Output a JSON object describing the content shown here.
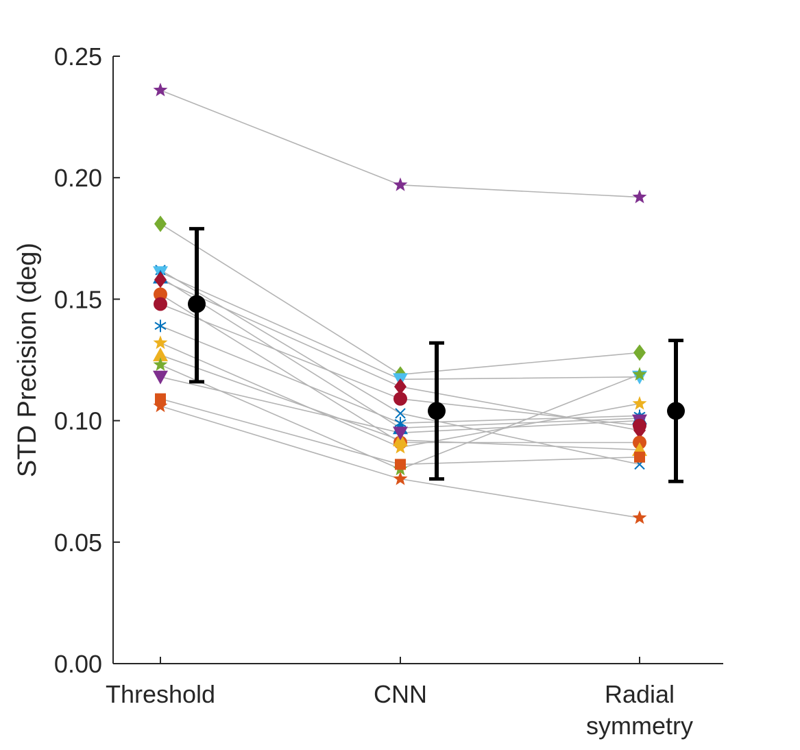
{
  "chart_data": {
    "type": "scatter",
    "title": "",
    "xlabel": "",
    "ylabel": "STD Precision (deg)",
    "ylim": [
      0,
      0.25
    ],
    "yticks": [
      "0.00",
      "0.05",
      "0.10",
      "0.15",
      "0.20",
      "0.25"
    ],
    "ytick_values": [
      0,
      0.05,
      0.1,
      0.15,
      0.2,
      0.25
    ],
    "categories": [
      {
        "lines": [
          "Threshold"
        ]
      },
      {
        "lines": [
          "CNN"
        ]
      },
      {
        "lines": [
          "Radial",
          "symmetry"
        ]
      }
    ],
    "series": [
      {
        "name": "s1",
        "marker": "star",
        "color": "#7E2F8E",
        "values": [
          0.236,
          0.197,
          0.192
        ]
      },
      {
        "name": "s2",
        "marker": "diamond",
        "color": "#77AC30",
        "values": [
          0.181,
          0.119,
          0.128
        ]
      },
      {
        "name": "s3",
        "marker": "x",
        "color": "#0072BD",
        "values": [
          0.162,
          0.103,
          0.082
        ]
      },
      {
        "name": "s4",
        "marker": "triangle-down",
        "color": "#4DBEEE",
        "values": [
          0.161,
          0.117,
          0.118
        ]
      },
      {
        "name": "s5",
        "marker": "triangle-up",
        "color": "#0072BD",
        "values": [
          0.159,
          0.097,
          0.101
        ]
      },
      {
        "name": "s6",
        "marker": "diamond",
        "color": "#A2142F",
        "values": [
          0.158,
          0.114,
          0.096
        ]
      },
      {
        "name": "s7",
        "marker": "circle",
        "color": "#D95319",
        "values": [
          0.152,
          0.091,
          0.091
        ]
      },
      {
        "name": "s8",
        "marker": "asterisk",
        "color": "#0072BD",
        "values": [
          0.139,
          0.099,
          0.102
        ]
      },
      {
        "name": "s9",
        "marker": "star",
        "color": "#EDB120",
        "values": [
          0.132,
          0.089,
          0.107
        ]
      },
      {
        "name": "s10",
        "marker": "triangle-up",
        "color": "#EDB120",
        "values": [
          0.127,
          0.092,
          0.088
        ]
      },
      {
        "name": "s11",
        "marker": "star",
        "color": "#77AC30",
        "values": [
          0.123,
          0.08,
          0.119
        ]
      },
      {
        "name": "s12",
        "marker": "triangle-down",
        "color": "#7E2F8E",
        "values": [
          0.118,
          0.095,
          0.1
        ]
      },
      {
        "name": "s13",
        "marker": "circle",
        "color": "#A2142F",
        "values": [
          0.148,
          0.109,
          0.098
        ]
      },
      {
        "name": "s14",
        "marker": "square",
        "color": "#D95319",
        "values": [
          0.109,
          0.082,
          0.085
        ]
      },
      {
        "name": "s15",
        "marker": "star",
        "color": "#D95319",
        "values": [
          0.106,
          0.076,
          0.06
        ]
      }
    ],
    "summary": [
      {
        "category": "Threshold",
        "mean": 0.148,
        "lower": 0.116,
        "upper": 0.179
      },
      {
        "category": "CNN",
        "mean": 0.104,
        "lower": 0.076,
        "upper": 0.132
      },
      {
        "category": "Radial symmetry",
        "mean": 0.104,
        "lower": 0.075,
        "upper": 0.133
      }
    ],
    "connector_color": "#b3b3b3",
    "summary_color": "#000000",
    "grid": false,
    "legend": "none"
  }
}
